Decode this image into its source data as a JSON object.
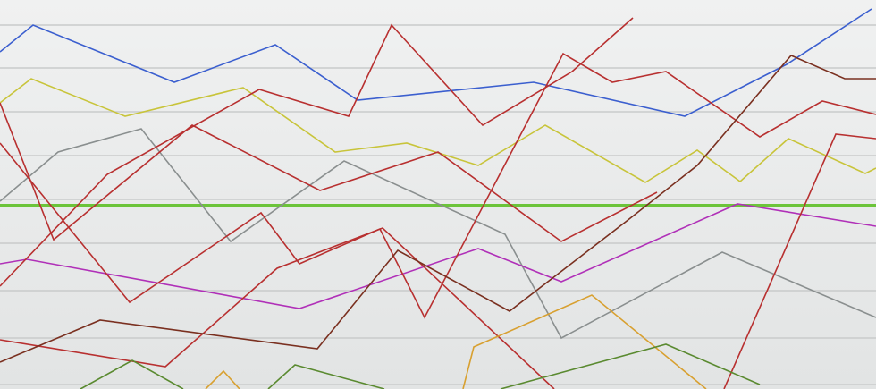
{
  "chart_data": {
    "type": "line",
    "xlim": [
      0,
      980
    ],
    "ylim": [
      0,
      435
    ],
    "yticks": [
      407,
      359,
      310,
      261,
      212,
      163,
      110,
      57,
      5
    ],
    "grid": true,
    "grid_color": "#c9cbcb",
    "series": [
      {
        "color": "#3b5fcf",
        "x": [
          0,
          37,
          195,
          308,
          400,
          597,
          766,
          880,
          975
        ],
        "values": [
          377,
          407,
          343,
          385,
          323,
          343,
          305,
          363,
          425
        ]
      },
      {
        "color": "#c8c43a",
        "x": [
          0,
          35,
          140,
          272,
          375,
          455,
          535,
          610,
          722,
          780,
          828,
          882,
          968,
          980
        ],
        "values": [
          320,
          347,
          305,
          337,
          265,
          275,
          250,
          295,
          231,
          267,
          232,
          280,
          241,
          247
        ]
      },
      {
        "color": "#6cc43a",
        "width": 4,
        "x": [
          0,
          980
        ],
        "values": [
          205,
          205
        ]
      },
      {
        "color": "#8a8f8f",
        "x": [
          0,
          65,
          158,
          258,
          385,
          565,
          628,
          808,
          980
        ],
        "values": [
          210,
          265,
          291,
          165,
          255,
          173,
          57,
          153,
          80
        ]
      },
      {
        "color": "#b030b8",
        "x": [
          0,
          30,
          335,
          535,
          628,
          825,
          980
        ],
        "values": [
          140,
          145,
          90,
          157,
          120,
          207,
          182
        ]
      },
      {
        "color": "#b83030",
        "x": [
          0,
          60,
          215,
          358,
          490,
          628,
          735
        ],
        "values": [
          320,
          167,
          295,
          222,
          265,
          165,
          220
        ]
      },
      {
        "color": "#b83030",
        "x": [
          0,
          145,
          292,
          335,
          425,
          475,
          630,
          685,
          745,
          850,
          920,
          980
        ],
        "values": [
          275,
          97,
          197,
          140,
          179,
          80,
          375,
          343,
          355,
          282,
          322,
          307
        ]
      },
      {
        "color": "#b83030",
        "x": [
          0,
          120,
          290,
          390,
          438,
          540,
          640,
          708
        ],
        "values": [
          115,
          240,
          335,
          305,
          407,
          295,
          355,
          415
        ]
      },
      {
        "color": "#b83030",
        "x": [
          0,
          185,
          310,
          428,
          620
        ],
        "values": [
          55,
          25,
          135,
          180,
          0
        ]
      },
      {
        "color": "#b83030",
        "x": [
          810,
          935,
          980
        ],
        "values": [
          0,
          285,
          280
        ]
      },
      {
        "color": "#7a3020",
        "x": [
          0,
          112,
          355,
          445,
          570,
          700,
          780,
          885,
          945,
          980
        ],
        "values": [
          30,
          77,
          45,
          155,
          87,
          187,
          250,
          373,
          347,
          347
        ]
      },
      {
        "color": "#d8a030",
        "x": [
          518,
          530,
          662,
          790
        ],
        "values": [
          0,
          47,
          105,
          0
        ]
      },
      {
        "color": "#d8a030",
        "x": [
          230,
          250,
          268
        ],
        "values": [
          0,
          20,
          0
        ]
      },
      {
        "color": "#5a8a30",
        "x": [
          90,
          148,
          205
        ],
        "values": [
          0,
          32,
          0
        ]
      },
      {
        "color": "#5a8a30",
        "x": [
          300,
          330,
          430
        ],
        "values": [
          0,
          27,
          0
        ]
      },
      {
        "color": "#5a8a30",
        "x": [
          560,
          745,
          850
        ],
        "values": [
          0,
          50,
          5
        ]
      }
    ]
  }
}
